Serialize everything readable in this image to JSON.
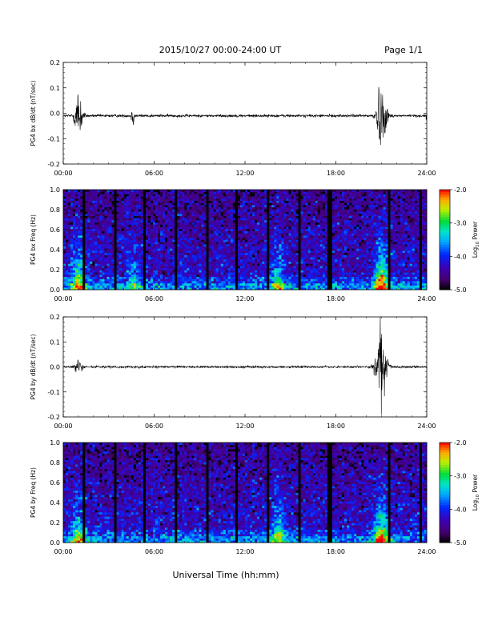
{
  "header": {
    "title": "2015/10/27  00:00-24:00 UT",
    "page_label": "Page 1/1"
  },
  "footer": {
    "xlabel": "Universal Time (hh:mm)"
  },
  "colorbar": {
    "ticks": [
      "-2.0",
      "-3.0",
      "-4.0",
      "-5.0"
    ],
    "label_main": "Log",
    "label_sub": "10",
    "label_rest": " Power",
    "range": [
      -5.0,
      -2.0
    ]
  },
  "chart_data": [
    {
      "type": "line",
      "title": "",
      "ylabel": "PG4 bx dB/dt (nT/sec)",
      "xlabel": "",
      "x_unit": "hours UT",
      "xlim": [
        0,
        24
      ],
      "ylim": [
        -0.2,
        0.2
      ],
      "xticks": [
        "00:00",
        "06:00",
        "12:00",
        "18:00",
        "24:00"
      ],
      "yticks": [
        "0.2",
        "0.1",
        "0.0",
        "-0.1",
        "-0.2"
      ],
      "baseline": -0.01,
      "noise_amplitude": 0.006,
      "bursts": [
        {
          "t": 1.0,
          "amp": 0.12,
          "width": 0.35
        },
        {
          "t": 4.6,
          "amp": 0.04,
          "width": 0.15
        },
        {
          "t": 21.0,
          "amp": 0.14,
          "width": 0.45
        },
        {
          "t": 24.0,
          "amp": 0.02,
          "width": 0.1
        }
      ]
    },
    {
      "type": "heatmap",
      "title": "",
      "ylabel": "PG4 bx Freq (Hz)",
      "xlim": [
        0,
        24
      ],
      "ylim": [
        0,
        1.0
      ],
      "xticks": [
        "00:00",
        "06:00",
        "12:00",
        "18:00",
        "24:00"
      ],
      "yticks": [
        "1.0",
        "0.8",
        "0.6",
        "0.4",
        "0.2",
        "0.0"
      ],
      "value_unit": "log10 power",
      "value_range": [
        -5.0,
        -2.0
      ],
      "gap_times_hours": [
        1.4,
        3.4,
        5.4,
        7.5,
        9.5,
        11.5,
        13.5,
        15.6,
        17.6,
        21.5,
        23.6
      ],
      "activity_centers": [
        {
          "t": 1.0,
          "power": -2.6
        },
        {
          "t": 4.6,
          "power": -3.6
        },
        {
          "t": 14.2,
          "power": -3.2
        },
        {
          "t": 21.0,
          "power": -2.2
        }
      ]
    },
    {
      "type": "line",
      "title": "",
      "ylabel": "PG4 by dB/dt (nT/sec)",
      "xlabel": "",
      "x_unit": "hours UT",
      "xlim": [
        0,
        24
      ],
      "ylim": [
        -0.2,
        0.2
      ],
      "xticks": [
        "00:00",
        "06:00",
        "12:00",
        "18:00",
        "24:00"
      ],
      "yticks": [
        "0.2",
        "0.1",
        "0.0",
        "-0.1",
        "-0.2"
      ],
      "baseline": 0.0,
      "noise_amplitude": 0.005,
      "bursts": [
        {
          "t": 1.0,
          "amp": 0.03,
          "width": 0.4
        },
        {
          "t": 21.0,
          "amp": 0.16,
          "width": 0.5
        }
      ]
    },
    {
      "type": "heatmap",
      "title": "",
      "ylabel": "PG4 by Freq (Hz)",
      "xlim": [
        0,
        24
      ],
      "ylim": [
        0,
        1.0
      ],
      "xticks": [
        "00:00",
        "06:00",
        "12:00",
        "18:00",
        "24:00"
      ],
      "yticks": [
        "1.0",
        "0.8",
        "0.6",
        "0.4",
        "0.2",
        "0.0"
      ],
      "value_unit": "log10 power",
      "value_range": [
        -5.0,
        -2.0
      ],
      "gap_times_hours": [
        1.4,
        3.4,
        5.4,
        7.5,
        9.5,
        11.5,
        13.5,
        15.6,
        17.6,
        21.5,
        23.6
      ],
      "activity_centers": [
        {
          "t": 1.0,
          "power": -3.0
        },
        {
          "t": 14.2,
          "power": -3.1
        },
        {
          "t": 21.0,
          "power": -2.5
        }
      ]
    }
  ]
}
